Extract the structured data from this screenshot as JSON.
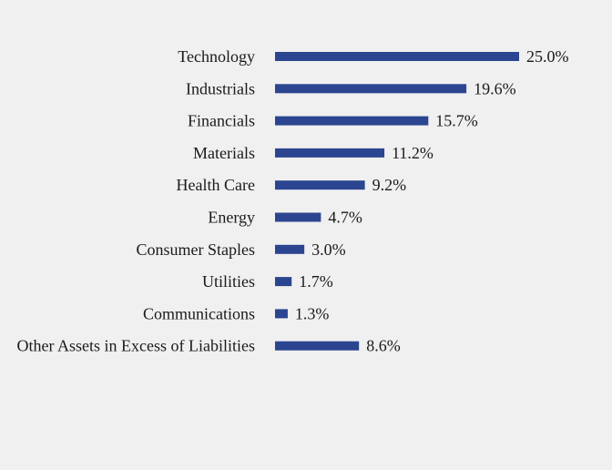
{
  "chart_data": {
    "type": "bar",
    "orientation": "horizontal",
    "categories": [
      "Technology",
      "Industrials",
      "Financials",
      "Materials",
      "Health Care",
      "Energy",
      "Consumer Staples",
      "Utilities",
      "Communications",
      "Other Assets in Excess of Liabilities"
    ],
    "values": [
      25.0,
      19.6,
      15.7,
      11.2,
      9.2,
      4.7,
      3.0,
      1.7,
      1.3,
      8.6
    ],
    "value_labels": [
      "25.0%",
      "19.6%",
      "15.7%",
      "11.2%",
      "9.2%",
      "4.7%",
      "3.0%",
      "1.7%",
      "1.3%",
      "8.6%"
    ],
    "xlim": [
      0,
      25
    ],
    "grid": false,
    "legend": "none",
    "bar_color": "#2b4590",
    "background_color": "#f0f0f0"
  }
}
